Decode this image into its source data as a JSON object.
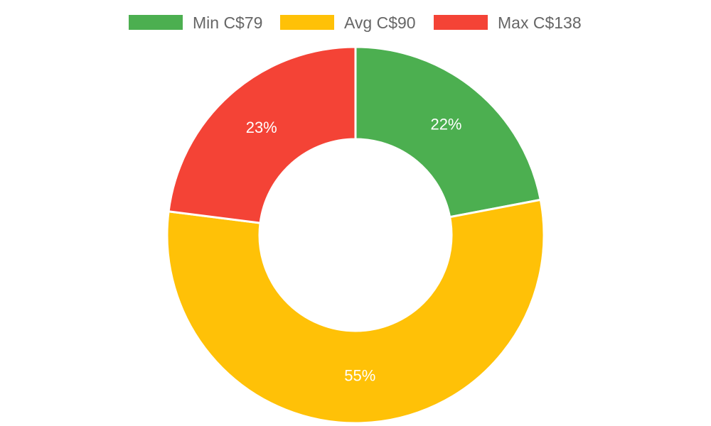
{
  "chart_data": {
    "type": "pie",
    "variant": "doughnut",
    "legend_position": "top",
    "categories": [
      "Min C$79",
      "Avg C$90",
      "Max C$138"
    ],
    "values": [
      22,
      55,
      23
    ],
    "value_labels": [
      "22%",
      "55%",
      "23%"
    ],
    "colors": [
      "#4caf50",
      "#ffc107",
      "#f44336"
    ]
  }
}
